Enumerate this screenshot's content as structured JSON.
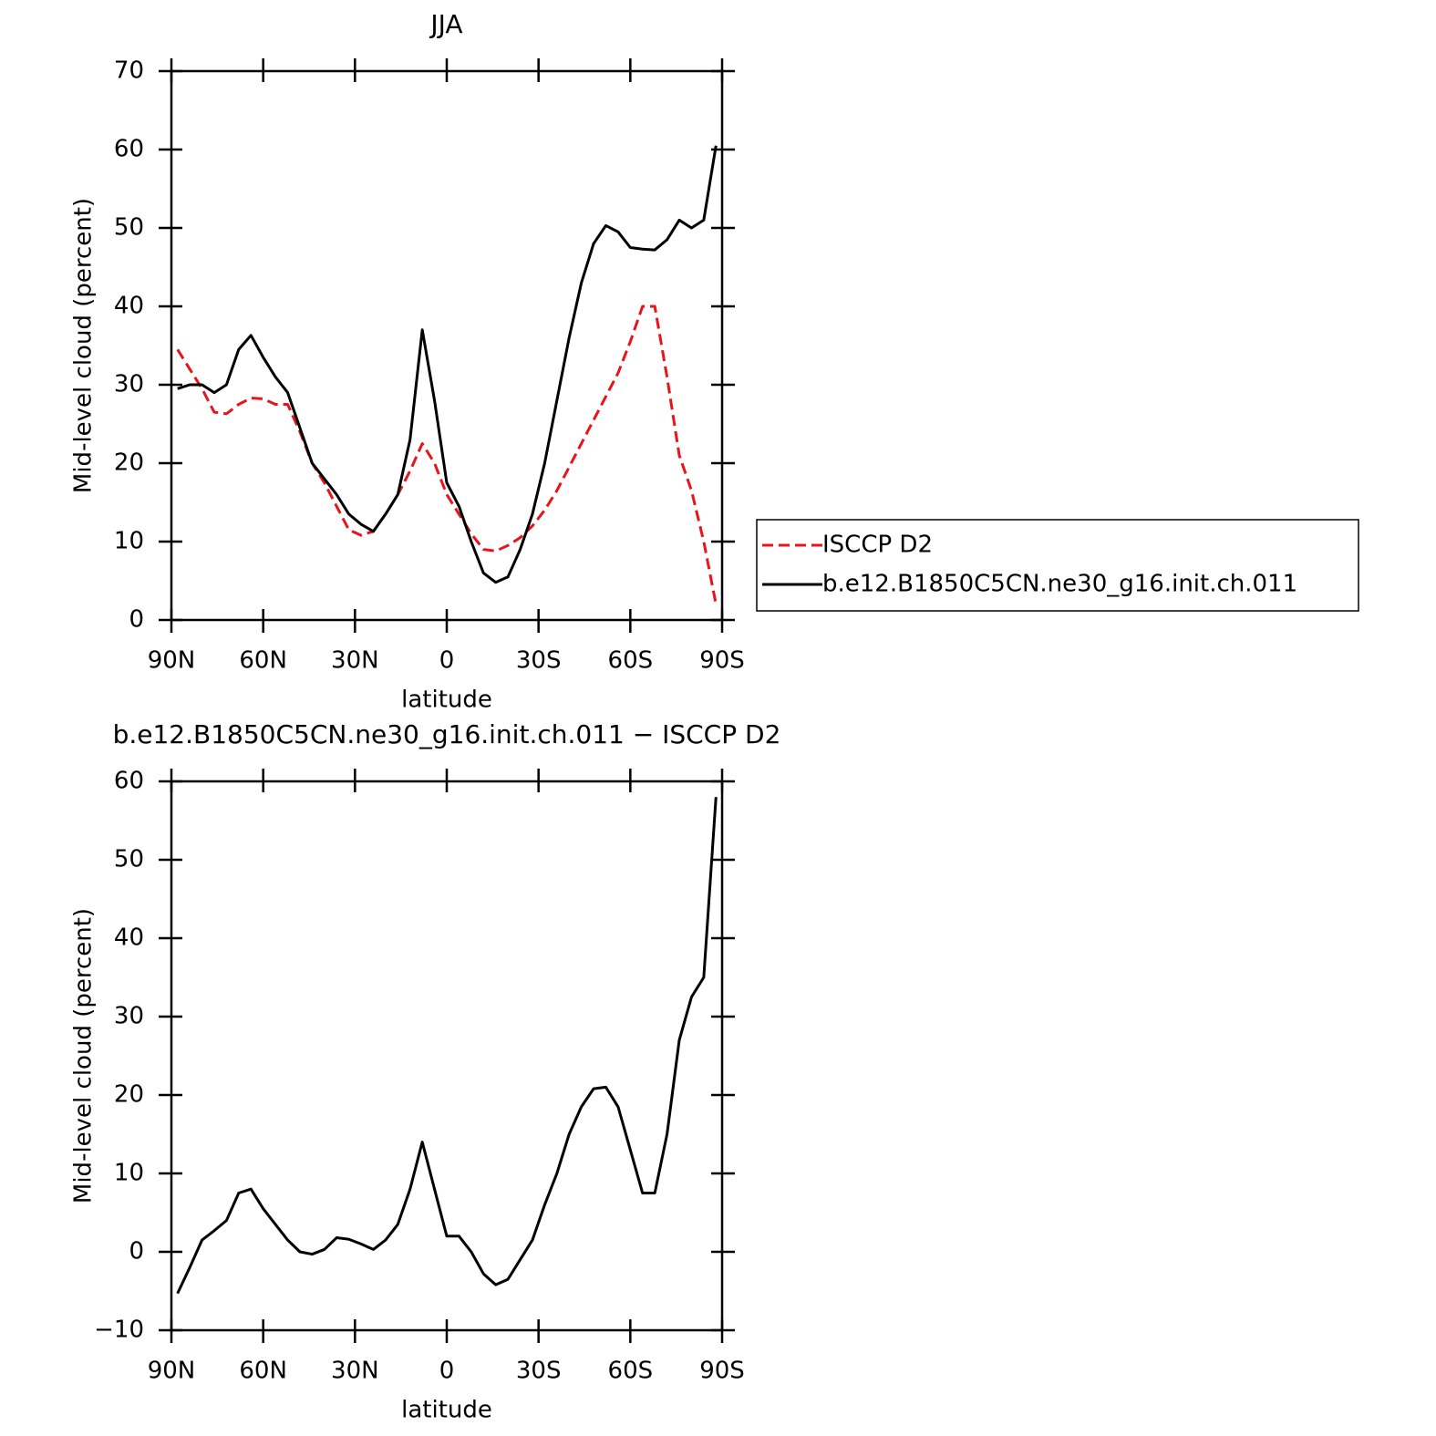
{
  "chart_data": [
    {
      "type": "line",
      "title": "JJA",
      "xlabel": "latitude",
      "ylabel": "Mid-level cloud (percent)",
      "x": [
        88,
        84,
        80,
        76,
        72,
        68,
        64,
        60,
        56,
        52,
        48,
        44,
        40,
        36,
        32,
        28,
        24,
        20,
        16,
        12,
        8,
        4,
        0,
        -4,
        -8,
        -12,
        -16,
        -20,
        -24,
        -28,
        -32,
        -36,
        -40,
        -44,
        -48,
        -52,
        -56,
        -60,
        -64,
        -68,
        -72,
        -76,
        -80,
        -84,
        -88
      ],
      "series": [
        {
          "name": "ISCCP D2",
          "color": "#e8141a",
          "linestyle": "dashed",
          "values": [
            34.5,
            32,
            29.5,
            26.5,
            26.3,
            27.5,
            28.3,
            28.2,
            27.5,
            27.5,
            24,
            20,
            17.5,
            14.5,
            11.5,
            10.8,
            11.3,
            13.5,
            16,
            19,
            22.5,
            20,
            16,
            13.5,
            11,
            9,
            8.8,
            9.5,
            10.5,
            12,
            14,
            16.5,
            19.5,
            22.5,
            25.5,
            28.5,
            31.5,
            35.5,
            40,
            40,
            31,
            21,
            16.5,
            10,
            2
          ]
        },
        {
          "name": "b.e12.B1850C5CN.ne30_g16.init.ch.011",
          "color": "#000000",
          "linestyle": "solid",
          "values": [
            29.5,
            30,
            30,
            29,
            30,
            34.5,
            36.3,
            33.5,
            31,
            29,
            24.5,
            20,
            18,
            16,
            13.5,
            12.2,
            11.3,
            13.5,
            16,
            23,
            37,
            28,
            17.5,
            14.5,
            10,
            6,
            4.8,
            5.5,
            9,
            13.5,
            20,
            28,
            36,
            43,
            48,
            50.3,
            49.5,
            47.5,
            47.3,
            47.2,
            48.5,
            51,
            50,
            51,
            60.5
          ]
        }
      ],
      "xlim": [
        90,
        -90
      ],
      "xticks": [
        {
          "value": 90,
          "label": "90N"
        },
        {
          "value": 60,
          "label": "60N"
        },
        {
          "value": 30,
          "label": "30N"
        },
        0,
        {
          "value": -30,
          "label": "30S"
        },
        {
          "value": -60,
          "label": "60S"
        },
        {
          "value": -90,
          "label": "90S"
        }
      ],
      "ylim": [
        0,
        70
      ],
      "yticks": [
        0,
        10,
        20,
        30,
        40,
        50,
        60,
        70
      ],
      "legend_position": "right"
    },
    {
      "type": "line",
      "title": "b.e12.B1850C5CN.ne30_g16.init.ch.011 − ISCCP D2",
      "xlabel": "latitude",
      "ylabel": "Mid-level cloud (percent)",
      "x": [
        88,
        84,
        80,
        76,
        72,
        68,
        64,
        60,
        56,
        52,
        48,
        44,
        40,
        36,
        32,
        28,
        24,
        20,
        16,
        12,
        8,
        4,
        0,
        -4,
        -8,
        -12,
        -16,
        -20,
        -24,
        -28,
        -32,
        -36,
        -40,
        -44,
        -48,
        -52,
        -56,
        -60,
        -64,
        -68,
        -72,
        -76,
        -80,
        -84,
        -88
      ],
      "series": [
        {
          "color": "#000000",
          "linestyle": "solid",
          "values": [
            -5.3,
            -2,
            1.5,
            2.7,
            4,
            7.5,
            8,
            5.5,
            3.5,
            1.5,
            0,
            -0.3,
            0.3,
            1.8,
            1.6,
            1,
            0.3,
            1.5,
            3.5,
            8,
            14,
            8,
            2,
            2,
            0,
            -2.8,
            -4.2,
            -3.5,
            -1,
            1.5,
            6,
            10,
            15,
            18.5,
            20.8,
            21,
            18.5,
            13,
            7.5,
            7.5,
            15,
            27,
            32.5,
            35,
            58
          ]
        }
      ],
      "xlim": [
        90,
        -90
      ],
      "xticks": [
        {
          "value": 90,
          "label": "90N"
        },
        {
          "value": 60,
          "label": "60N"
        },
        {
          "value": 30,
          "label": "30N"
        },
        0,
        {
          "value": -30,
          "label": "30S"
        },
        {
          "value": -60,
          "label": "60S"
        },
        {
          "value": -90,
          "label": "90S"
        }
      ],
      "ylim": [
        -10,
        60
      ],
      "yticks": [
        -10,
        0,
        10,
        20,
        30,
        40,
        50,
        60
      ]
    }
  ]
}
